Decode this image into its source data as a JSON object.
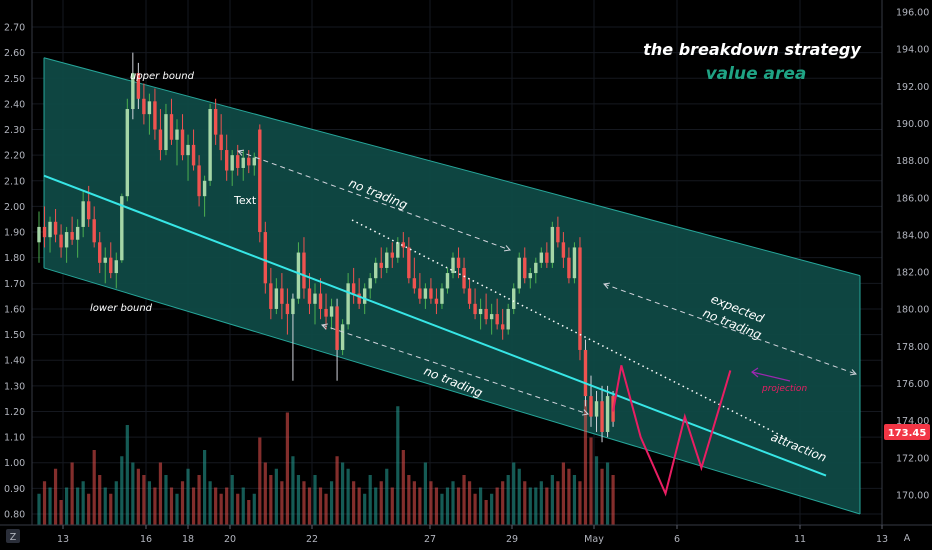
{
  "chart_data": {
    "type": "candlestick",
    "title": "the breakdown strategy",
    "subtitle": "value area",
    "left_axis": {
      "ticks": [
        "0.80",
        "0.90",
        "1.00",
        "1.10",
        "1.20",
        "1.30",
        "1.40",
        "1.50",
        "1.60",
        "1.70",
        "1.80",
        "1.90",
        "2.00",
        "2.10",
        "2.20",
        "2.30",
        "2.40",
        "2.50",
        "2.60",
        "2.70"
      ],
      "ylim": [
        0.76,
        2.76
      ]
    },
    "right_axis": {
      "ticks": [
        "170.00",
        "172.00",
        "174.00",
        "176.00",
        "178.00",
        "180.00",
        "182.00",
        "184.00",
        "186.00",
        "188.00",
        "190.00",
        "192.00",
        "194.00",
        "196.00"
      ],
      "ylim": [
        168.3,
        196.6
      ]
    },
    "x_ticks": [
      "13",
      "16",
      "18",
      "20",
      "22",
      "27",
      "29",
      "May",
      "6",
      "11",
      "13"
    ],
    "last_price": "173.45",
    "axis_corner_label": "A",
    "log_toggle_label": "Z",
    "colors": {
      "up": "#26a69a",
      "down": "#ef5350",
      "channel_fill": "#0f4b46",
      "channel_edge": "#26a69a",
      "midline": "#37e6e6",
      "projection": "#e91e63",
      "projection_arrow": "#9c27b0",
      "title_accent": "#1fa384",
      "price_tag": "#f23645"
    },
    "annotations": {
      "upper_bound": "upper bound",
      "lower_bound": "lower bound",
      "text": "Text",
      "no_trading_top": "no trading",
      "no_trading_bottom": "no trading",
      "expected_no_trading_1": "expected",
      "expected_no_trading_2": "no trading",
      "projection": "projection",
      "attraction": "attraction"
    },
    "candles": [
      [
        1.86,
        1.98,
        1.78,
        1.92
      ],
      [
        1.92,
        2.0,
        1.84,
        1.88
      ],
      [
        1.88,
        1.96,
        1.82,
        1.94
      ],
      [
        1.94,
        1.99,
        1.86,
        1.89
      ],
      [
        1.89,
        1.93,
        1.8,
        1.84
      ],
      [
        1.84,
        1.92,
        1.78,
        1.9
      ],
      [
        1.9,
        1.96,
        1.85,
        1.87
      ],
      [
        1.87,
        1.95,
        1.8,
        1.92
      ],
      [
        1.92,
        2.06,
        1.88,
        2.02
      ],
      [
        2.02,
        2.08,
        1.92,
        1.95
      ],
      [
        1.95,
        2.0,
        1.84,
        1.86
      ],
      [
        1.86,
        1.9,
        1.74,
        1.78
      ],
      [
        1.78,
        1.84,
        1.7,
        1.8
      ],
      [
        1.8,
        1.86,
        1.72,
        1.74
      ],
      [
        1.74,
        1.82,
        1.68,
        1.79
      ],
      [
        1.79,
        2.05,
        1.78,
        2.04
      ],
      [
        2.04,
        2.42,
        2.02,
        2.38
      ],
      [
        2.38,
        2.6,
        2.34,
        2.52
      ],
      [
        2.52,
        2.56,
        2.38,
        2.42
      ],
      [
        2.42,
        2.48,
        2.32,
        2.36
      ],
      [
        2.36,
        2.44,
        2.28,
        2.41
      ],
      [
        2.41,
        2.46,
        2.26,
        2.3
      ],
      [
        2.3,
        2.38,
        2.18,
        2.22
      ],
      [
        2.22,
        2.4,
        2.2,
        2.36
      ],
      [
        2.36,
        2.42,
        2.24,
        2.26
      ],
      [
        2.26,
        2.34,
        2.16,
        2.3
      ],
      [
        2.3,
        2.36,
        2.18,
        2.2
      ],
      [
        2.2,
        2.28,
        2.1,
        2.24
      ],
      [
        2.24,
        2.3,
        2.14,
        2.16
      ],
      [
        2.16,
        2.2,
        2.0,
        2.04
      ],
      [
        2.04,
        2.12,
        1.96,
        2.1
      ],
      [
        2.1,
        2.4,
        2.08,
        2.38
      ],
      [
        2.38,
        2.42,
        2.24,
        2.28
      ],
      [
        2.28,
        2.36,
        2.18,
        2.22
      ],
      [
        2.22,
        2.28,
        2.1,
        2.14
      ],
      [
        2.14,
        2.22,
        2.08,
        2.2
      ],
      [
        2.2,
        2.24,
        2.12,
        2.15
      ],
      [
        2.15,
        2.22,
        2.1,
        2.19
      ],
      [
        2.19,
        2.22,
        2.13,
        2.16
      ],
      [
        2.16,
        2.21,
        2.12,
        2.19
      ],
      [
        2.3,
        2.32,
        1.86,
        1.9
      ],
      [
        1.9,
        1.94,
        1.66,
        1.7
      ],
      [
        1.7,
        1.76,
        1.56,
        1.6
      ],
      [
        1.6,
        1.72,
        1.58,
        1.68
      ],
      [
        1.68,
        1.74,
        1.56,
        1.62
      ],
      [
        1.62,
        1.68,
        1.5,
        1.58
      ],
      [
        1.58,
        1.66,
        1.32,
        1.64
      ],
      [
        1.64,
        1.86,
        1.62,
        1.82
      ],
      [
        1.82,
        1.88,
        1.64,
        1.68
      ],
      [
        1.68,
        1.74,
        1.58,
        1.62
      ],
      [
        1.62,
        1.7,
        1.54,
        1.66
      ],
      [
        1.66,
        1.72,
        1.56,
        1.6
      ],
      [
        1.6,
        1.66,
        1.52,
        1.57
      ],
      [
        1.57,
        1.64,
        1.52,
        1.61
      ],
      [
        1.61,
        1.64,
        1.32,
        1.44
      ],
      [
        1.44,
        1.56,
        1.42,
        1.54
      ],
      [
        1.54,
        1.74,
        1.52,
        1.7
      ],
      [
        1.7,
        1.76,
        1.62,
        1.66
      ],
      [
        1.66,
        1.72,
        1.6,
        1.62
      ],
      [
        1.62,
        1.7,
        1.58,
        1.68
      ],
      [
        1.68,
        1.74,
        1.64,
        1.72
      ],
      [
        1.72,
        1.8,
        1.7,
        1.78
      ],
      [
        1.78,
        1.84,
        1.72,
        1.76
      ],
      [
        1.76,
        1.84,
        1.74,
        1.82
      ],
      [
        1.82,
        1.86,
        1.76,
        1.8
      ],
      [
        1.8,
        1.88,
        1.78,
        1.86
      ],
      [
        1.86,
        1.9,
        1.8,
        1.84
      ],
      [
        1.84,
        1.88,
        1.7,
        1.72
      ],
      [
        1.72,
        1.8,
        1.66,
        1.68
      ],
      [
        1.68,
        1.74,
        1.62,
        1.64
      ],
      [
        1.64,
        1.7,
        1.6,
        1.68
      ],
      [
        1.68,
        1.72,
        1.62,
        1.64
      ],
      [
        1.64,
        1.68,
        1.58,
        1.62
      ],
      [
        1.62,
        1.7,
        1.6,
        1.68
      ],
      [
        1.68,
        1.76,
        1.66,
        1.74
      ],
      [
        1.74,
        1.82,
        1.72,
        1.8
      ],
      [
        1.8,
        1.84,
        1.72,
        1.76
      ],
      [
        1.76,
        1.8,
        1.66,
        1.68
      ],
      [
        1.68,
        1.72,
        1.6,
        1.62
      ],
      [
        1.62,
        1.68,
        1.56,
        1.58
      ],
      [
        1.58,
        1.64,
        1.52,
        1.6
      ],
      [
        1.6,
        1.66,
        1.54,
        1.56
      ],
      [
        1.56,
        1.62,
        1.5,
        1.58
      ],
      [
        1.58,
        1.64,
        1.52,
        1.54
      ],
      [
        1.54,
        1.6,
        1.48,
        1.52
      ],
      [
        1.52,
        1.62,
        1.5,
        1.6
      ],
      [
        1.6,
        1.7,
        1.58,
        1.68
      ],
      [
        1.68,
        1.82,
        1.66,
        1.8
      ],
      [
        1.8,
        1.84,
        1.7,
        1.72
      ],
      [
        1.72,
        1.76,
        1.68,
        1.74
      ],
      [
        1.74,
        1.8,
        1.7,
        1.78
      ],
      [
        1.78,
        1.84,
        1.76,
        1.82
      ],
      [
        1.82,
        1.86,
        1.76,
        1.78
      ],
      [
        1.78,
        1.94,
        1.76,
        1.92
      ],
      [
        1.92,
        1.96,
        1.84,
        1.86
      ],
      [
        1.86,
        1.9,
        1.76,
        1.8
      ],
      [
        1.8,
        1.84,
        1.7,
        1.72
      ],
      [
        1.72,
        1.86,
        1.7,
        1.84
      ],
      [
        1.84,
        1.88,
        1.4,
        1.44
      ],
      [
        1.44,
        1.48,
        1.22,
        1.26
      ],
      [
        1.26,
        1.34,
        1.14,
        1.18
      ],
      [
        1.18,
        1.28,
        1.12,
        1.24
      ],
      [
        1.24,
        1.3,
        1.08,
        1.12
      ],
      [
        1.12,
        1.3,
        1.1,
        1.26
      ],
      [
        1.26,
        1.28,
        1.14,
        1.16
      ]
    ],
    "volume": [
      0.25,
      0.35,
      0.3,
      0.45,
      0.2,
      0.3,
      0.5,
      0.3,
      0.35,
      0.25,
      0.6,
      0.4,
      0.3,
      0.25,
      0.35,
      0.55,
      0.8,
      0.5,
      0.45,
      0.4,
      0.35,
      0.3,
      0.5,
      0.4,
      0.3,
      0.25,
      0.35,
      0.45,
      0.3,
      0.4,
      0.6,
      0.35,
      0.3,
      0.25,
      0.3,
      0.4,
      0.25,
      0.3,
      0.2,
      0.25,
      0.7,
      0.5,
      0.4,
      0.45,
      0.35,
      0.9,
      0.55,
      0.4,
      0.35,
      0.3,
      0.4,
      0.3,
      0.25,
      0.35,
      0.55,
      0.5,
      0.45,
      0.35,
      0.3,
      0.25,
      0.4,
      0.3,
      0.35,
      0.45,
      0.3,
      0.95,
      0.6,
      0.4,
      0.35,
      0.3,
      0.5,
      0.35,
      0.3,
      0.25,
      0.3,
      0.35,
      0.3,
      0.4,
      0.35,
      0.25,
      0.3,
      0.2,
      0.25,
      0.3,
      0.35,
      0.4,
      0.5,
      0.45,
      0.35,
      0.3,
      0.3,
      0.35,
      0.3,
      0.4,
      0.35,
      0.5,
      0.45,
      0.4,
      0.35,
      1.0,
      0.7,
      0.55,
      0.45,
      0.5,
      0.4,
      0.35
    ],
    "projection_path": [
      [
        1.1,
        1.2
      ],
      [
        1.16,
        1.38
      ],
      [
        1.3,
        1.1
      ],
      [
        1.48,
        0.88
      ],
      [
        1.62,
        1.18
      ],
      [
        1.74,
        0.98
      ],
      [
        1.95,
        1.36
      ]
    ]
  }
}
